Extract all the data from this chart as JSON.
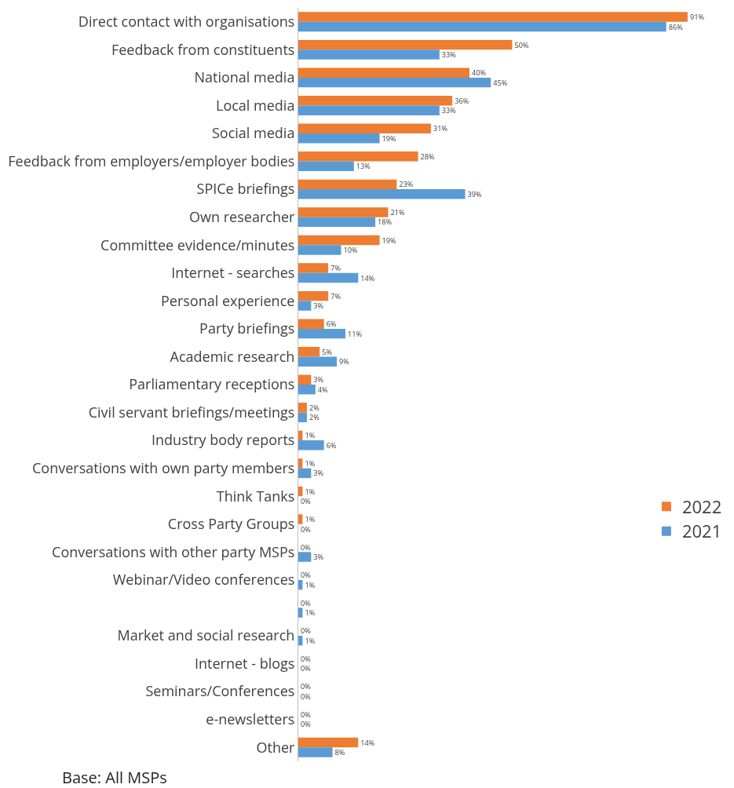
{
  "chart_data": {
    "type": "bar",
    "orientation": "horizontal",
    "categories": [
      "Direct contact with organisations",
      "Feedback from constituents",
      "National media",
      "Local media",
      "Social media",
      "Feedback from employers/employer bodies",
      "SPICe briefings",
      "Own researcher",
      "Committee evidence/minutes",
      "Internet - searches",
      "Personal experience",
      "Party briefings",
      "Academic research",
      "Parliamentary receptions",
      "Civil servant briefings/meetings",
      "Industry body reports",
      "Conversations with own party members",
      "Think Tanks",
      "Cross Party Groups",
      "Conversations with other party MSPs",
      "Webinar/Video conferences",
      null,
      "Market and social research",
      "Internet - blogs",
      "Seminars/Conferences",
      "e-newsletters",
      "Other"
    ],
    "series": [
      {
        "name": "2022",
        "color": "#ed7d31",
        "values": [
          91,
          50,
          40,
          36,
          31,
          28,
          23,
          21,
          19,
          7,
          7,
          6,
          5,
          3,
          2,
          1,
          1,
          1,
          1,
          0,
          0,
          0,
          0,
          0,
          0,
          0,
          14
        ],
        "value_labels": [
          "91%",
          "50%",
          "40%",
          "36%",
          "31%",
          "28%",
          "23%",
          "21%",
          "19%",
          "7%",
          "7%",
          "6%",
          "5%",
          "3%",
          "2%",
          "1%",
          "1%",
          "1%",
          "1%",
          "0%",
          "0%",
          "0%",
          "0%",
          "0%",
          "0%",
          "0%",
          "14%"
        ]
      },
      {
        "name": "2021",
        "color": "#5b9bd5",
        "values": [
          86,
          33,
          45,
          33,
          19,
          13,
          39,
          18,
          10,
          14,
          3,
          11,
          9,
          4,
          2,
          6,
          3,
          0,
          0,
          3,
          1,
          1,
          1,
          0,
          0,
          0,
          8
        ],
        "value_labels": [
          "86%",
          "33%",
          "45%",
          "33%",
          "19%",
          "13%",
          "39%",
          "18%",
          "10%",
          "14%",
          "3%",
          "11%",
          "9%",
          "4%",
          "2%",
          "6%",
          "3%",
          "0%",
          "0%",
          "3%",
          "1%",
          "1%",
          "1%",
          "0%",
          "0%",
          "0%",
          "8%"
        ]
      }
    ],
    "legend": "right",
    "tick_labels": "y",
    "grid": false,
    "annotations": [
      "Base: All MSPs"
    ]
  }
}
